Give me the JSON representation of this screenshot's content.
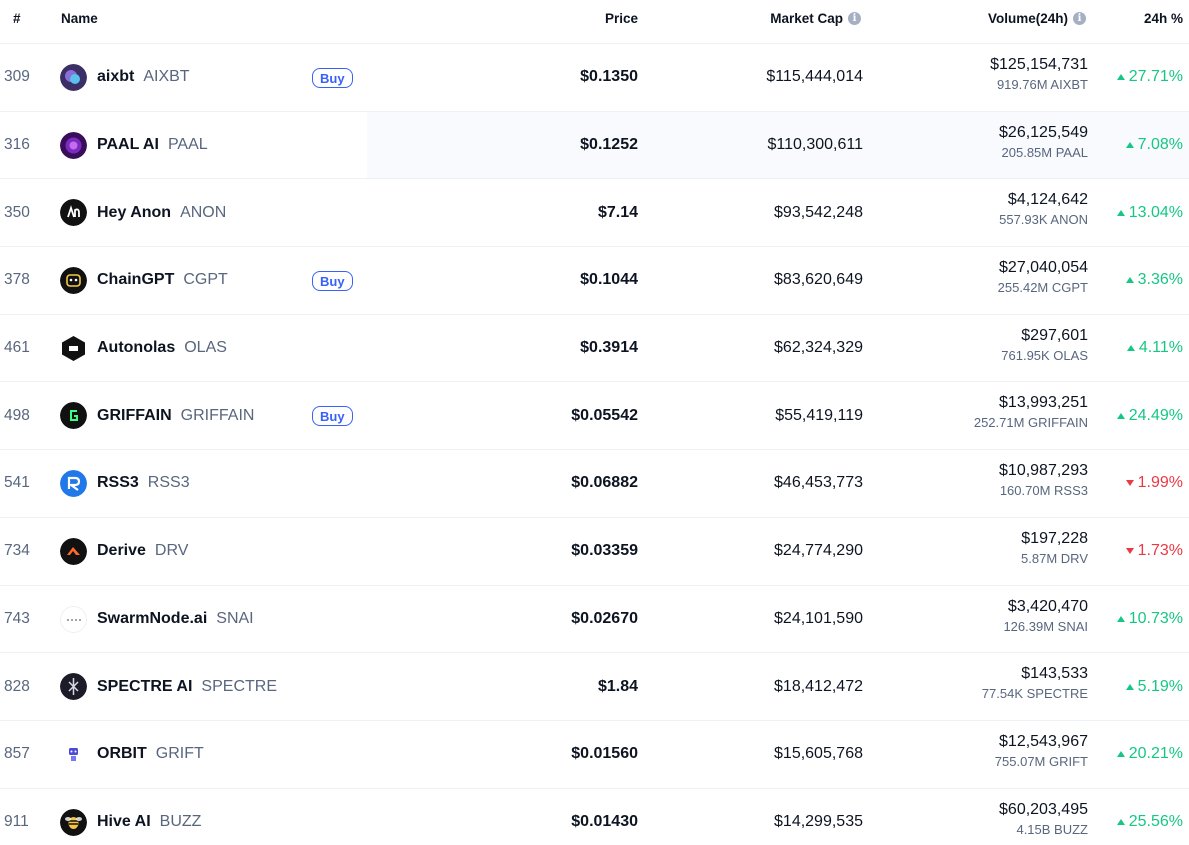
{
  "headers": {
    "rank": "#",
    "name": "Name",
    "price": "Price",
    "market_cap": "Market Cap",
    "volume": "Volume(24h)",
    "change": "24h %"
  },
  "colors": {
    "up": "#16c784",
    "down": "#ea3943",
    "buy": "#3861fb"
  },
  "rows": [
    {
      "rank": "309",
      "name": "aixbt",
      "symbol": "AIXBT",
      "buy": "Buy",
      "price": "$0.1350",
      "market_cap": "$115,444,014",
      "volume": "$125,154,731",
      "volume_coin": "919.76M AIXBT",
      "change": "27.71%",
      "dir": "up",
      "icon": "aixbt-logo"
    },
    {
      "rank": "316",
      "name": "PAAL AI",
      "symbol": "PAAL",
      "buy": "",
      "price": "$0.1252",
      "market_cap": "$110,300,611",
      "volume": "$26,125,549",
      "volume_coin": "205.85M PAAL",
      "change": "7.08%",
      "dir": "up",
      "icon": "paal-logo"
    },
    {
      "rank": "350",
      "name": "Hey Anon",
      "symbol": "ANON",
      "buy": "",
      "price": "$7.14",
      "market_cap": "$93,542,248",
      "volume": "$4,124,642",
      "volume_coin": "557.93K ANON",
      "change": "13.04%",
      "dir": "up",
      "icon": "anon-logo"
    },
    {
      "rank": "378",
      "name": "ChainGPT",
      "symbol": "CGPT",
      "buy": "Buy",
      "price": "$0.1044",
      "market_cap": "$83,620,649",
      "volume": "$27,040,054",
      "volume_coin": "255.42M CGPT",
      "change": "3.36%",
      "dir": "up",
      "icon": "chaingpt-logo"
    },
    {
      "rank": "461",
      "name": "Autonolas",
      "symbol": "OLAS",
      "buy": "",
      "price": "$0.3914",
      "market_cap": "$62,324,329",
      "volume": "$297,601",
      "volume_coin": "761.95K OLAS",
      "change": "4.11%",
      "dir": "up",
      "icon": "olas-logo"
    },
    {
      "rank": "498",
      "name": "GRIFFAIN",
      "symbol": "GRIFFAIN",
      "buy": "Buy",
      "price": "$0.05542",
      "market_cap": "$55,419,119",
      "volume": "$13,993,251",
      "volume_coin": "252.71M GRIFFAIN",
      "change": "24.49%",
      "dir": "up",
      "icon": "griffain-logo"
    },
    {
      "rank": "541",
      "name": "RSS3",
      "symbol": "RSS3",
      "buy": "",
      "price": "$0.06882",
      "market_cap": "$46,453,773",
      "volume": "$10,987,293",
      "volume_coin": "160.70M RSS3",
      "change": "1.99%",
      "dir": "down",
      "icon": "rss3-logo"
    },
    {
      "rank": "734",
      "name": "Derive",
      "symbol": "DRV",
      "buy": "",
      "price": "$0.03359",
      "market_cap": "$24,774,290",
      "volume": "$197,228",
      "volume_coin": "5.87M DRV",
      "change": "1.73%",
      "dir": "down",
      "icon": "derive-logo"
    },
    {
      "rank": "743",
      "name": "SwarmNode.ai",
      "symbol": "SNAI",
      "buy": "",
      "price": "$0.02670",
      "market_cap": "$24,101,590",
      "volume": "$3,420,470",
      "volume_coin": "126.39M SNAI",
      "change": "10.73%",
      "dir": "up",
      "icon": "swarmnode-logo"
    },
    {
      "rank": "828",
      "name": "SPECTRE AI",
      "symbol": "SPECTRE",
      "buy": "",
      "price": "$1.84",
      "market_cap": "$18,412,472",
      "volume": "$143,533",
      "volume_coin": "77.54K SPECTRE",
      "change": "5.19%",
      "dir": "up",
      "icon": "spectre-logo"
    },
    {
      "rank": "857",
      "name": "ORBIT",
      "symbol": "GRIFT",
      "buy": "",
      "price": "$0.01560",
      "market_cap": "$15,605,768",
      "volume": "$12,543,967",
      "volume_coin": "755.07M GRIFT",
      "change": "20.21%",
      "dir": "up",
      "icon": "orbit-logo"
    },
    {
      "rank": "911",
      "name": "Hive AI",
      "symbol": "BUZZ",
      "buy": "",
      "price": "$0.01430",
      "market_cap": "$14,299,535",
      "volume": "$60,203,495",
      "volume_coin": "4.15B BUZZ",
      "change": "25.56%",
      "dir": "up",
      "icon": "hive-logo"
    }
  ]
}
